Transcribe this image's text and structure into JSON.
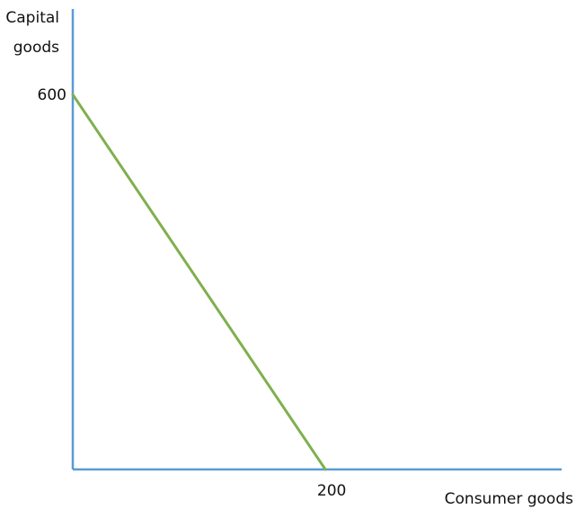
{
  "chart_data": {
    "type": "line",
    "title": "",
    "ylabel_lines": [
      "Capital",
      "goods"
    ],
    "xlabel": "Consumer goods",
    "x_ticks": [
      200
    ],
    "y_ticks": [
      600
    ],
    "xlim": [
      0,
      387
    ],
    "ylim": [
      0,
      737
    ],
    "grid": false,
    "legend": "none",
    "series": [
      {
        "x": [
          0,
          200
        ],
        "y": [
          600,
          0
        ],
        "color": "#7fb04d"
      }
    ],
    "axis_color": "#5b9bd5"
  }
}
